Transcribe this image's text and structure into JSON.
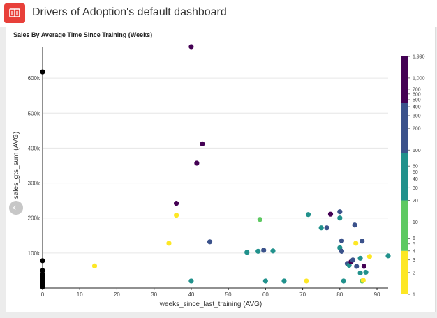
{
  "header": {
    "title": "Drivers of Adoption's default dashboard",
    "icon": "dashboard-icon",
    "accent_color": "#e8403a"
  },
  "chart_data": {
    "type": "scatter",
    "title": "Sales By Average Time Since Training (Weeks)",
    "xlabel": "weeks_since_last_training (AVG)",
    "ylabel": "sales_gts_sum (AVG)",
    "xlim": [
      0,
      93
    ],
    "ylim": [
      0,
      690000
    ],
    "x_ticks": [
      0,
      10,
      20,
      30,
      40,
      50,
      60,
      70,
      80,
      90
    ],
    "y_ticks": [
      100000,
      200000,
      300000,
      400000,
      500000,
      600000
    ],
    "y_tick_labels": [
      "100k",
      "200k",
      "300k",
      "400k",
      "500k",
      "600k"
    ],
    "grid": "horizontal",
    "color_legend": {
      "position": "right",
      "scale": "log",
      "range": [
        1,
        1990
      ],
      "ticks": [
        {
          "v": 1,
          "label": "1"
        },
        {
          "v": 2,
          "label": "2"
        },
        {
          "v": 3,
          "label": "3"
        },
        {
          "v": 4,
          "label": "4"
        },
        {
          "v": 5,
          "label": "5"
        },
        {
          "v": 6,
          "label": "6"
        },
        {
          "v": 10,
          "label": "10"
        },
        {
          "v": 20,
          "label": "20"
        },
        {
          "v": 30,
          "label": "30"
        },
        {
          "v": 40,
          "label": "40"
        },
        {
          "v": 50,
          "label": "50"
        },
        {
          "v": 60,
          "label": "60"
        },
        {
          "v": 100,
          "label": "100"
        },
        {
          "v": 200,
          "label": "200"
        },
        {
          "v": 300,
          "label": "300"
        },
        {
          "v": 400,
          "label": "400"
        },
        {
          "v": 500,
          "label": "500"
        },
        {
          "v": 600,
          "label": "600"
        },
        {
          "v": 700,
          "label": "700"
        },
        {
          "v": 1000,
          "label": "1,000"
        },
        {
          "v": 1990,
          "label": "1,990"
        }
      ],
      "bands": [
        {
          "from": 1,
          "to": 4,
          "color": "#fde725"
        },
        {
          "from": 4,
          "to": 20,
          "color": "#5ec962"
        },
        {
          "from": 20,
          "to": 90,
          "color": "#21918c"
        },
        {
          "from": 90,
          "to": 450,
          "color": "#3b528b"
        },
        {
          "from": 450,
          "to": 1990,
          "color": "#440154"
        }
      ]
    },
    "points": [
      {
        "x": 0,
        "y": 618000,
        "c": "#000000"
      },
      {
        "x": 0,
        "y": 78000,
        "c": "#000000"
      },
      {
        "x": 0,
        "y": 50000,
        "c": "#000000"
      },
      {
        "x": 0,
        "y": 40000,
        "c": "#000000"
      },
      {
        "x": 0,
        "y": 32000,
        "c": "#000000"
      },
      {
        "x": 0,
        "y": 25000,
        "c": "#000000"
      },
      {
        "x": 0,
        "y": 18000,
        "c": "#000000"
      },
      {
        "x": 0,
        "y": 12000,
        "c": "#000000"
      },
      {
        "x": 0,
        "y": 7000,
        "c": "#000000"
      },
      {
        "x": 0,
        "y": 3000,
        "c": "#000000"
      },
      {
        "x": 14,
        "y": 63000,
        "c": "#fde725"
      },
      {
        "x": 34,
        "y": 128000,
        "c": "#fde725"
      },
      {
        "x": 36,
        "y": 208000,
        "c": "#fde725"
      },
      {
        "x": 36,
        "y": 242000,
        "c": "#440154"
      },
      {
        "x": 40,
        "y": 690000,
        "c": "#440154"
      },
      {
        "x": 40,
        "y": 20000,
        "c": "#21918c"
      },
      {
        "x": 41.5,
        "y": 357000,
        "c": "#440154"
      },
      {
        "x": 43,
        "y": 412000,
        "c": "#440154"
      },
      {
        "x": 45,
        "y": 132000,
        "c": "#3b528b"
      },
      {
        "x": 55,
        "y": 102000,
        "c": "#21918c"
      },
      {
        "x": 58,
        "y": 105000,
        "c": "#21918c"
      },
      {
        "x": 58.5,
        "y": 196000,
        "c": "#5ec962"
      },
      {
        "x": 59.5,
        "y": 108000,
        "c": "#3b528b"
      },
      {
        "x": 60,
        "y": 20000,
        "c": "#21918c"
      },
      {
        "x": 62,
        "y": 106000,
        "c": "#21918c"
      },
      {
        "x": 65,
        "y": 20000,
        "c": "#21918c"
      },
      {
        "x": 71,
        "y": 20000,
        "c": "#fde725"
      },
      {
        "x": 71.5,
        "y": 210000,
        "c": "#21918c"
      },
      {
        "x": 75,
        "y": 172000,
        "c": "#21918c"
      },
      {
        "x": 76.5,
        "y": 172000,
        "c": "#3b528b"
      },
      {
        "x": 77.5,
        "y": 211000,
        "c": "#440154"
      },
      {
        "x": 80,
        "y": 218000,
        "c": "#3b528b"
      },
      {
        "x": 80,
        "y": 200000,
        "c": "#21918c"
      },
      {
        "x": 80.5,
        "y": 135000,
        "c": "#3b528b"
      },
      {
        "x": 80,
        "y": 115000,
        "c": "#21918c"
      },
      {
        "x": 80.5,
        "y": 105000,
        "c": "#3b528b"
      },
      {
        "x": 81,
        "y": 20000,
        "c": "#21918c"
      },
      {
        "x": 82,
        "y": 70000,
        "c": "#3b528b"
      },
      {
        "x": 82.5,
        "y": 65000,
        "c": "#21918c"
      },
      {
        "x": 83,
        "y": 75000,
        "c": "#440154"
      },
      {
        "x": 83.5,
        "y": 80000,
        "c": "#3b528b"
      },
      {
        "x": 84,
        "y": 180000,
        "c": "#3b528b"
      },
      {
        "x": 84.3,
        "y": 128000,
        "c": "#fde725"
      },
      {
        "x": 84.5,
        "y": 62000,
        "c": "#3b528b"
      },
      {
        "x": 85.5,
        "y": 85000,
        "c": "#21918c"
      },
      {
        "x": 85.5,
        "y": 43000,
        "c": "#21918c"
      },
      {
        "x": 86,
        "y": 134000,
        "c": "#3b528b"
      },
      {
        "x": 86,
        "y": 20000,
        "c": "#5ec962"
      },
      {
        "x": 86.3,
        "y": 22000,
        "c": "#fde725"
      },
      {
        "x": 86.5,
        "y": 62000,
        "c": "#440154"
      },
      {
        "x": 87,
        "y": 45000,
        "c": "#21918c"
      },
      {
        "x": 88,
        "y": 90000,
        "c": "#fde725"
      },
      {
        "x": 93,
        "y": 92000,
        "c": "#21918c"
      }
    ]
  }
}
